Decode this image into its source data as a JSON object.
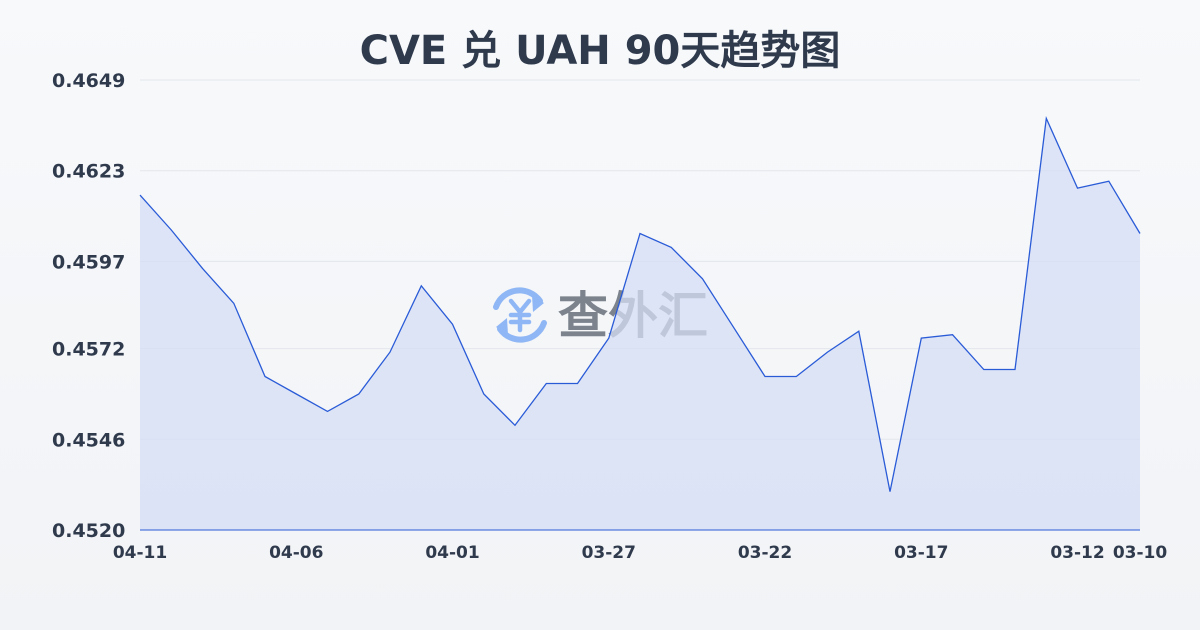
{
  "chart_data": {
    "type": "area",
    "title": "CVE 兑 UAH 90天趋势图",
    "xlabel": "",
    "ylabel": "",
    "x": [
      "04-11",
      "04-10",
      "04-09",
      "04-08",
      "04-07",
      "04-06",
      "04-05",
      "04-04",
      "04-03",
      "04-02",
      "04-01",
      "03-31",
      "03-30",
      "03-29",
      "03-28",
      "03-27",
      "03-26",
      "03-25",
      "03-24",
      "03-23",
      "03-22",
      "03-21",
      "03-20",
      "03-19",
      "03-18",
      "03-17",
      "03-16",
      "03-15",
      "03-14",
      "03-13",
      "03-12",
      "03-11",
      "03-10"
    ],
    "values": [
      0.4616,
      0.4606,
      0.4595,
      0.4585,
      0.4564,
      0.4559,
      0.4554,
      0.4559,
      0.4571,
      0.459,
      0.4579,
      0.4559,
      0.455,
      0.4562,
      0.4562,
      0.4575,
      0.4605,
      0.4601,
      0.4592,
      0.4578,
      0.4564,
      0.4564,
      0.4571,
      0.4577,
      0.4531,
      0.4575,
      0.4576,
      0.4566,
      0.4566,
      0.4638,
      0.4618,
      0.462,
      0.4605
    ],
    "ylim": [
      0.452,
      0.4649
    ],
    "yticks": [
      "0.4649",
      "0.4623",
      "0.4597",
      "0.4572",
      "0.4546",
      "0.4520"
    ],
    "xticks": [
      "04-11",
      "04-06",
      "04-01",
      "03-27",
      "03-22",
      "03-17",
      "03-12",
      "03-10"
    ],
    "grid": true,
    "colors": {
      "line": "#2a5bd7",
      "fill": "#d5def5",
      "grid": "#e3e6eb"
    },
    "watermark": {
      "text": "查外汇",
      "icon": "yen-exchange-icon",
      "icon_color": "#8fb6f5",
      "text_color": "#767d88"
    }
  }
}
